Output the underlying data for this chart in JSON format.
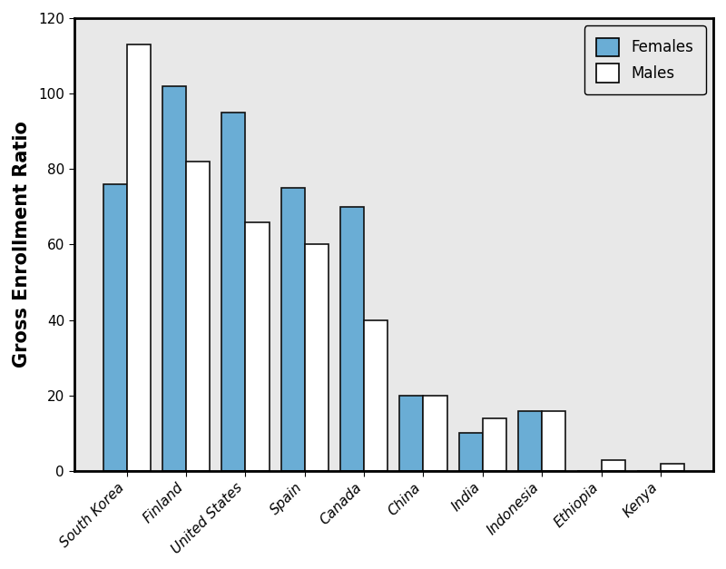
{
  "countries": [
    "South Korea",
    "Finland",
    "United States",
    "Spain",
    "Canada",
    "China",
    "India",
    "Indonesia",
    "Ethiopia",
    "Kenya"
  ],
  "females": [
    76,
    102,
    95,
    75,
    70,
    20,
    10,
    16,
    0,
    0
  ],
  "males": [
    113,
    82,
    66,
    60,
    40,
    20,
    14,
    16,
    3,
    2
  ],
  "female_color": "#6aadd5",
  "male_color": "#FFFFFF",
  "bar_edgecolor": "#111111",
  "ylabel": "Gross Enrollment Ratio",
  "ylim": [
    0,
    120
  ],
  "yticks": [
    0,
    20,
    40,
    60,
    80,
    100,
    120
  ],
  "plot_bg_color": "#E8E8E8",
  "fig_bg_color": "#FFFFFF",
  "legend_labels": [
    "Females",
    "Males"
  ],
  "bar_width": 0.4,
  "ylabel_fontsize": 15,
  "tick_fontsize": 11,
  "legend_fontsize": 12
}
